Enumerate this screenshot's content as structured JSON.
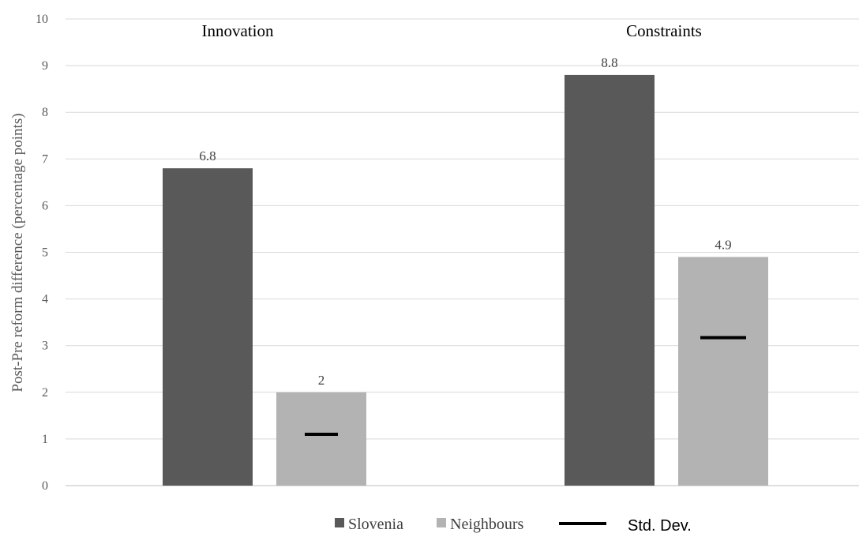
{
  "chart_data": {
    "type": "bar",
    "categories": [
      "Innovation",
      "Constraints"
    ],
    "series": [
      {
        "name": "Slovenia",
        "values": [
          6.8,
          8.8
        ],
        "labels": [
          "6.8",
          "8.8"
        ],
        "color": "#595959"
      },
      {
        "name": "Neighbours",
        "values": [
          2,
          4.9
        ],
        "labels": [
          "2",
          "4.9"
        ],
        "color": "#b3b3b3"
      }
    ],
    "std_dev": {
      "name": "Std. Dev.",
      "values": [
        1.1,
        3.17
      ],
      "color": "#000000"
    },
    "ylabel": "Post-Pre reform difference (percentage points)",
    "ylim": [
      0,
      10
    ],
    "yticks": [
      "0",
      "1",
      "2",
      "3",
      "4",
      "5",
      "6",
      "7",
      "8",
      "9",
      "10"
    ],
    "grid": true,
    "legend_position": "bottom"
  }
}
